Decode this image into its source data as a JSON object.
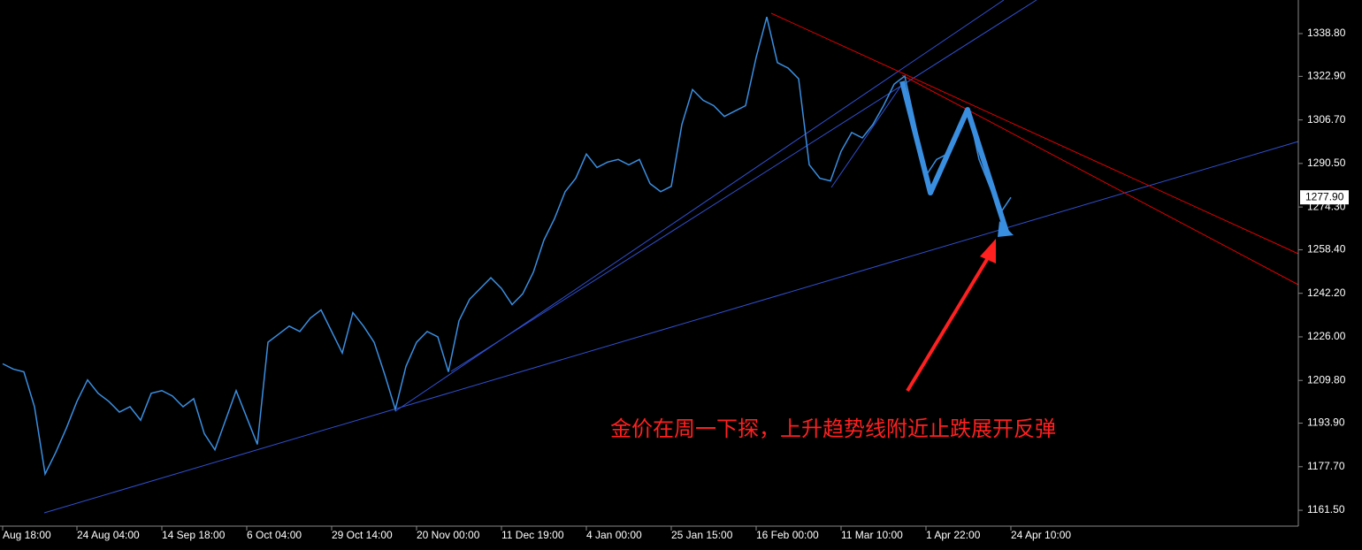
{
  "chart_data": {
    "type": "line",
    "color": "#3a8ee0",
    "categories": [
      "Aug 18:00",
      null,
      null,
      null,
      null,
      null,
      null,
      "24 Aug 04:00",
      null,
      null,
      null,
      null,
      null,
      null,
      null,
      "14 Sep 18:00",
      null,
      null,
      null,
      null,
      null,
      null,
      null,
      "6 Oct 04:00",
      null,
      null,
      null,
      null,
      null,
      null,
      null,
      "29 Oct 14:00",
      null,
      null,
      null,
      null,
      null,
      null,
      null,
      "20 Nov 00:00",
      null,
      null,
      null,
      null,
      null,
      null,
      null,
      "11 Dec 19:00",
      null,
      null,
      null,
      null,
      null,
      null,
      null,
      "4 Jan 00:00",
      null,
      null,
      null,
      null,
      null,
      null,
      null,
      "25 Jan 15:00",
      null,
      null,
      null,
      null,
      null,
      null,
      null,
      "16 Feb 00:00",
      null,
      null,
      null,
      null,
      null,
      null,
      null,
      "11 Mar 10:00",
      null,
      null,
      null,
      null,
      null,
      null,
      null,
      "1 Apr 22:00",
      null,
      null,
      null,
      null,
      null,
      null,
      null,
      "24 Apr 10:00"
    ],
    "values": [
      1216,
      1214,
      1213,
      1200,
      1175,
      1183,
      1192,
      1202,
      1210,
      1205,
      1202,
      1198,
      1200,
      1195,
      1205,
      1206,
      1204,
      1200,
      1203,
      1190,
      1184,
      1195,
      1206,
      1196,
      1186,
      1224,
      1227,
      1230,
      1228,
      1233,
      1236,
      1228,
      1220,
      1235,
      1230,
      1224,
      1212,
      1199,
      1215,
      1224,
      1228,
      1226,
      1213,
      1232,
      1240,
      1244,
      1248,
      1244,
      1238,
      1242,
      1250,
      1262,
      1270,
      1280,
      1285,
      1294,
      1289,
      1291,
      1292,
      1290,
      1292,
      1283,
      1280,
      1282,
      1305,
      1318,
      1314,
      1312,
      1308,
      1310,
      1312,
      1330,
      1345,
      1328,
      1326,
      1322,
      1290,
      1285,
      1284,
      1295,
      1302,
      1300,
      1305,
      1312,
      1320,
      1323,
      1305,
      1286,
      1292,
      1294,
      1302,
      1310,
      1292,
      1282,
      1272,
      1277.9
    ],
    "ylim": [
      1155.6,
      1351.3
    ],
    "yticks": [
      {
        "value": 1338.8,
        "label": "1338.80"
      },
      {
        "value": 1322.9,
        "label": "1322.90"
      },
      {
        "value": 1306.7,
        "label": "1306.70"
      },
      {
        "value": 1290.5,
        "label": "1290.50"
      },
      {
        "value": 1274.3,
        "label": "1274.30"
      },
      {
        "value": 1258.4,
        "label": "1258.40"
      },
      {
        "value": 1242.2,
        "label": "1242.20"
      },
      {
        "value": 1226,
        "label": "1226.00"
      },
      {
        "value": 1209.8,
        "label": "1209.80"
      },
      {
        "value": 1193.9,
        "label": "1193.90"
      },
      {
        "value": 1177.7,
        "label": "1177.70"
      },
      {
        "value": 1161.5,
        "label": "1161.50"
      }
    ],
    "current_price": {
      "value": 1277.9,
      "label": "1277.90"
    },
    "annotation": "金价在周一下探，上升趋势线附近止跌展开反弹"
  }
}
